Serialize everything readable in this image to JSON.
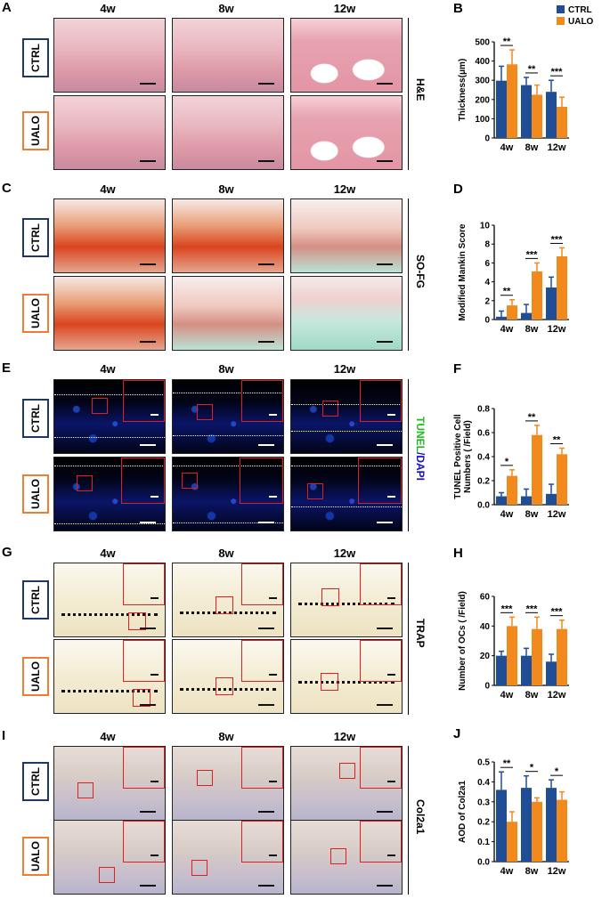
{
  "columns": [
    "4w",
    "8w",
    "12w"
  ],
  "groups": [
    "CTRL",
    "UALO"
  ],
  "colors": {
    "ctrl": "#1f4e96",
    "ualo": "#f2891c",
    "ctrl_border": "#1f3864",
    "ualo_border": "#ed7d31",
    "roi": "#e02020"
  },
  "rows": [
    {
      "letter": "A",
      "stain": "H&E"
    },
    {
      "letter": "C",
      "stain": "SO-FG"
    },
    {
      "letter": "E",
      "stain_parts": [
        "TUNEL",
        "/DAPI"
      ]
    },
    {
      "letter": "G",
      "stain": "TRAP"
    },
    {
      "letter": "I",
      "stain": "Col2a1"
    }
  ],
  "chart_data": [
    {
      "panel": "B",
      "type": "bar",
      "title": "",
      "categories": [
        "4w",
        "8w",
        "12w"
      ],
      "series": [
        {
          "name": "CTRL",
          "values": [
            298,
            275,
            240
          ],
          "errors": [
            75,
            40,
            60
          ]
        },
        {
          "name": "UALO",
          "values": [
            383,
            225,
            162
          ],
          "errors": [
            75,
            50,
            50
          ]
        }
      ],
      "ylabel": "Thickness(μm)",
      "ylim": [
        0,
        500
      ],
      "yticks": [
        "0",
        "100",
        "200",
        "300",
        "400",
        "500"
      ],
      "significance": [
        "**",
        "**",
        "***"
      ],
      "legend": [
        "CTRL",
        "UALO"
      ],
      "legend_position": "top-right"
    },
    {
      "panel": "D",
      "type": "bar",
      "title": "",
      "categories": [
        "4w",
        "8w",
        "12w"
      ],
      "series": [
        {
          "name": "CTRL",
          "values": [
            0.3,
            0.7,
            3.4
          ],
          "errors": [
            0.6,
            0.9,
            1.1
          ]
        },
        {
          "name": "UALO",
          "values": [
            1.5,
            5.1,
            6.7
          ],
          "errors": [
            0.6,
            0.9,
            0.9
          ]
        }
      ],
      "ylabel": "Modified Mankin Score",
      "ylim": [
        0,
        10
      ],
      "yticks": [
        "0",
        "2",
        "4",
        "6",
        "8",
        "10"
      ],
      "significance": [
        "**",
        "***",
        "***"
      ]
    },
    {
      "panel": "F",
      "type": "bar",
      "title": "",
      "categories": [
        "4w",
        "8w",
        "12w"
      ],
      "series": [
        {
          "name": "CTRL",
          "values": [
            0.07,
            0.07,
            0.09
          ],
          "errors": [
            0.03,
            0.06,
            0.08
          ]
        },
        {
          "name": "UALO",
          "values": [
            0.24,
            0.58,
            0.42
          ],
          "errors": [
            0.05,
            0.08,
            0.05
          ]
        }
      ],
      "ylabel": "TUNEL Positive Cell Numbers ( /Field)",
      "ylabel_lines": [
        "TUNEL Positive Cell",
        "Numbers ( /Field)"
      ],
      "ylim": [
        0,
        0.8
      ],
      "yticks": [
        "0.0",
        "0.2",
        "0.4",
        "0.6",
        "0.8"
      ],
      "significance": [
        "*",
        "**",
        "**"
      ]
    },
    {
      "panel": "H",
      "type": "bar",
      "title": "",
      "categories": [
        "4w",
        "8w",
        "12w"
      ],
      "series": [
        {
          "name": "CTRL",
          "values": [
            20,
            20,
            16
          ],
          "errors": [
            3,
            5,
            5
          ]
        },
        {
          "name": "UALO",
          "values": [
            40,
            38,
            38
          ],
          "errors": [
            6,
            8,
            6
          ]
        }
      ],
      "ylabel": "Number of OCs ( /Field)",
      "ylim": [
        0,
        60
      ],
      "yticks": [
        "0",
        "20",
        "40",
        "60"
      ],
      "significance": [
        "***",
        "***",
        "***"
      ]
    },
    {
      "panel": "J",
      "type": "bar",
      "title": "",
      "categories": [
        "4w",
        "8w",
        "12w"
      ],
      "series": [
        {
          "name": "CTRL",
          "values": [
            0.36,
            0.37,
            0.37
          ],
          "errors": [
            0.09,
            0.06,
            0.04
          ]
        },
        {
          "name": "UALO",
          "values": [
            0.2,
            0.3,
            0.31
          ],
          "errors": [
            0.05,
            0.02,
            0.04
          ]
        }
      ],
      "ylabel": "AOD of Col2a1",
      "ylim": [
        0,
        0.5
      ],
      "yticks": [
        "0.0",
        "0.1",
        "0.2",
        "0.3",
        "0.4",
        "0.5"
      ],
      "significance": [
        "**",
        "*",
        "*"
      ]
    }
  ]
}
